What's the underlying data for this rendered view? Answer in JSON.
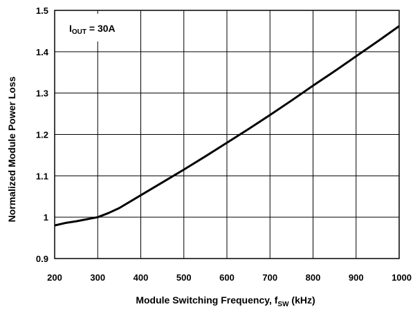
{
  "chart_data": {
    "type": "line",
    "title": "",
    "xlabel": {
      "main": "Module Switching Frequency, f",
      "sub": "SW",
      "unit": " (kHz)"
    },
    "ylabel": "Normalized Module Power Loss",
    "xlim": [
      200,
      1000
    ],
    "ylim": [
      0.9,
      1.5
    ],
    "x_ticks": [
      "200",
      "300",
      "400",
      "500",
      "600",
      "700",
      "800",
      "900",
      "1000"
    ],
    "y_ticks": [
      "0.9",
      "1",
      "1.1",
      "1.2",
      "1.3",
      "1.4",
      "1.5"
    ],
    "grid": true,
    "annotation": {
      "main": "I",
      "sub": "OUT",
      "rest": " = 30A"
    },
    "series": [
      {
        "x": [
          200,
          225,
          250,
          275,
          300,
          325,
          350,
          400,
          450,
          500,
          550,
          600,
          650,
          700,
          750,
          800,
          850,
          900,
          950,
          1000
        ],
        "values": [
          0.98,
          0.986,
          0.99,
          0.995,
          1.0,
          1.01,
          1.022,
          1.053,
          1.084,
          1.115,
          1.147,
          1.18,
          1.213,
          1.247,
          1.282,
          1.318,
          1.353,
          1.389,
          1.425,
          1.462
        ]
      }
    ],
    "line_color": "#000000"
  }
}
